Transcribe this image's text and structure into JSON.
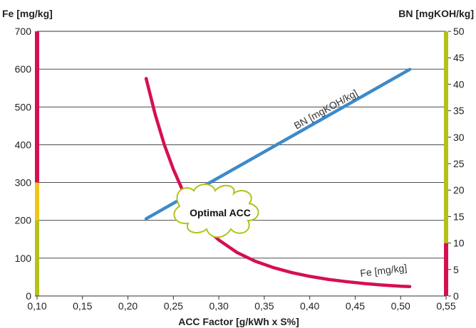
{
  "chart_data": {
    "type": "line",
    "xlabel": "ACC Factor [g/kWh x S%]",
    "ylabel_left": "Fe [mg/kg]",
    "ylabel_right": "BN [mgKOH/kg]",
    "xlim": [
      0.1,
      0.55
    ],
    "ylim_left": [
      0,
      700
    ],
    "ylim_right": [
      0,
      50
    ],
    "x_ticks": [
      "0,10",
      "0,15",
      "0,20",
      "0,25",
      "0,30",
      "0,35",
      "0,40",
      "0,45",
      "0,50",
      "0,55"
    ],
    "y_left_ticks": [
      "0",
      "100",
      "200",
      "300",
      "400",
      "500",
      "600",
      "700"
    ],
    "y_right_ticks": [
      "0",
      "5",
      "10",
      "15",
      "20",
      "25",
      "30",
      "35",
      "40",
      "45",
      "50"
    ],
    "grid": "horizontal",
    "series": [
      {
        "name": "Fe [mg/kg]",
        "axis": "left",
        "color": "#d6104f",
        "x": [
          0.22,
          0.23,
          0.24,
          0.25,
          0.26,
          0.27,
          0.28,
          0.29,
          0.3,
          0.32,
          0.34,
          0.36,
          0.38,
          0.4,
          0.42,
          0.44,
          0.46,
          0.48,
          0.5,
          0.51
        ],
        "y": [
          575,
          480,
          400,
          335,
          280,
          235,
          200,
          170,
          148,
          115,
          92,
          75,
          62,
          52,
          44,
          38,
          33,
          29,
          26,
          25
        ]
      },
      {
        "name": "BN [mgKOH/kg]",
        "axis": "right",
        "color": "#3d8ac9",
        "x": [
          0.22,
          0.51
        ],
        "y": [
          14.6,
          42.8
        ]
      }
    ],
    "annotations": [
      {
        "text": "Optimal ACC",
        "x": 0.285,
        "y_left": 222
      }
    ],
    "left_color_bands": [
      {
        "from": 0,
        "to": 200,
        "color": "#b2c21a"
      },
      {
        "from": 200,
        "to": 300,
        "color": "#f0c419"
      },
      {
        "from": 300,
        "to": 700,
        "color": "#d6104f"
      }
    ],
    "right_color_bands": [
      {
        "from": 0,
        "to": 10,
        "color": "#d6104f"
      },
      {
        "from": 10,
        "to": 50,
        "color": "#b2c21a"
      }
    ]
  }
}
